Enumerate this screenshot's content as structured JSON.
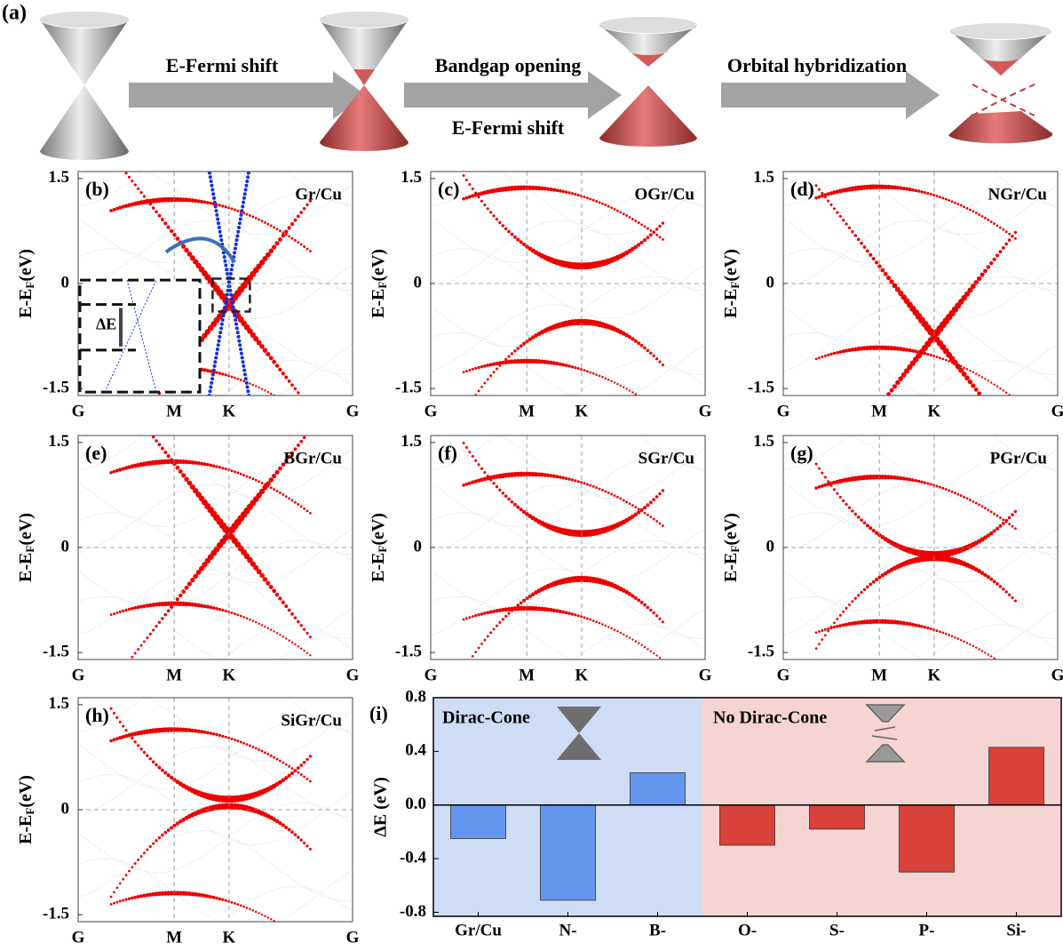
{
  "panel_a": {
    "label": "(a)",
    "arrows": [
      "E-Fermi shift",
      "Bandgap opening",
      "Orbital hybridization"
    ],
    "note": "E-Fermi shift"
  },
  "chart_data": [
    {
      "type": "band",
      "panel_label": "(b)",
      "title": "Gr/Cu",
      "ylabel": [
        "E-E",
        "F",
        "(eV)"
      ],
      "categories": [
        "G",
        "M",
        "K",
        "G"
      ],
      "ylim": [
        -1.6,
        1.6
      ],
      "yticks": [
        -1.5,
        0,
        1.5
      ],
      "inset_label": "ΔE"
    },
    {
      "type": "band",
      "panel_label": "(c)",
      "title": "OGr/Cu",
      "ylabel": [
        "E-E",
        "F",
        "(eV)"
      ],
      "categories": [
        "G",
        "M",
        "K",
        "G"
      ],
      "ylim": [
        -1.6,
        1.6
      ],
      "yticks": [
        -1.5,
        0,
        1.5
      ]
    },
    {
      "type": "band",
      "panel_label": "(d)",
      "title": "NGr/Cu",
      "ylabel": [
        "E-E",
        "F",
        "(eV)"
      ],
      "categories": [
        "G",
        "M",
        "K",
        "G"
      ],
      "ylim": [
        -1.6,
        1.6
      ],
      "yticks": [
        -1.5,
        0,
        1.5
      ]
    },
    {
      "type": "band",
      "panel_label": "(e)",
      "title": "BGr/Cu",
      "ylabel": [
        "E-E",
        "F",
        "(eV)"
      ],
      "categories": [
        "G",
        "M",
        "K",
        "G"
      ],
      "ylim": [
        -1.6,
        1.6
      ],
      "yticks": [
        -1.5,
        0,
        1.5
      ]
    },
    {
      "type": "band",
      "panel_label": "(f)",
      "title": "SGr/Cu",
      "ylabel": [
        "E-E",
        "F",
        "(eV)"
      ],
      "categories": [
        "G",
        "M",
        "K",
        "G"
      ],
      "ylim": [
        -1.6,
        1.6
      ],
      "yticks": [
        -1.5,
        0,
        1.5
      ]
    },
    {
      "type": "band",
      "panel_label": "(g)",
      "title": "PGr/Cu",
      "ylabel": [
        "E-E",
        "F",
        "(eV)"
      ],
      "categories": [
        "G",
        "M",
        "K",
        "G"
      ],
      "ylim": [
        -1.6,
        1.6
      ],
      "yticks": [
        -1.5,
        0,
        1.5
      ]
    },
    {
      "type": "band",
      "panel_label": "(h)",
      "title": "SiGr/Cu",
      "ylabel": [
        "E-E",
        "F",
        "(eV)"
      ],
      "categories": [
        "G",
        "M",
        "K",
        "G"
      ],
      "ylim": [
        -1.6,
        1.6
      ],
      "yticks": [
        -1.5,
        0,
        1.5
      ]
    },
    {
      "type": "bar",
      "panel_label": "(i)",
      "ylabel": "ΔE (eV)",
      "annotations": [
        "Dirac-Cone",
        "No Dirac-Cone"
      ],
      "categories": [
        "Gr/Cu",
        "N-",
        "B-",
        "O-",
        "S-",
        "P-",
        "Si-"
      ],
      "values": [
        -0.25,
        -0.71,
        0.24,
        -0.3,
        -0.18,
        -0.5,
        0.43
      ],
      "colors": [
        "#6495ed",
        "#6495ed",
        "#6495ed",
        "#d9413b",
        "#d9413b",
        "#d9413b",
        "#d9413b"
      ],
      "ylim": [
        -0.83,
        0.8
      ],
      "yticks": [
        0.8,
        0.4,
        {
          "value": 0,
          "label": "0.0"
        },
        -0.4,
        -0.8
      ]
    }
  ]
}
